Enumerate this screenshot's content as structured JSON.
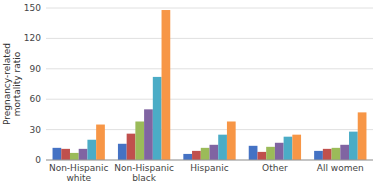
{
  "chart_data": {
    "type": "bar",
    "ylabel": "Pregnancy-related\nmortality ratio",
    "categories": [
      "Non-Hispanic\nwhite",
      "Non-Hispanic\nblack",
      "Hispanic",
      "Other",
      "All women"
    ],
    "series": [
      {
        "color": "#4472C4",
        "values": [
          12,
          16,
          6,
          14,
          9
        ]
      },
      {
        "color": "#C0504D",
        "values": [
          11,
          26,
          9,
          8,
          11
        ]
      },
      {
        "color": "#9BBB59",
        "values": [
          7,
          38,
          12,
          13,
          12
        ]
      },
      {
        "color": "#8064A2",
        "values": [
          11,
          50,
          15,
          17,
          15
        ]
      },
      {
        "color": "#4BACC6",
        "values": [
          20,
          82,
          25,
          23,
          28
        ]
      },
      {
        "color": "#F79646",
        "values": [
          35,
          148,
          38,
          25,
          47
        ]
      }
    ],
    "ylim": [
      0,
      150
    ],
    "yticks": [
      0,
      30,
      60,
      90,
      120,
      150
    ],
    "grid": true
  }
}
